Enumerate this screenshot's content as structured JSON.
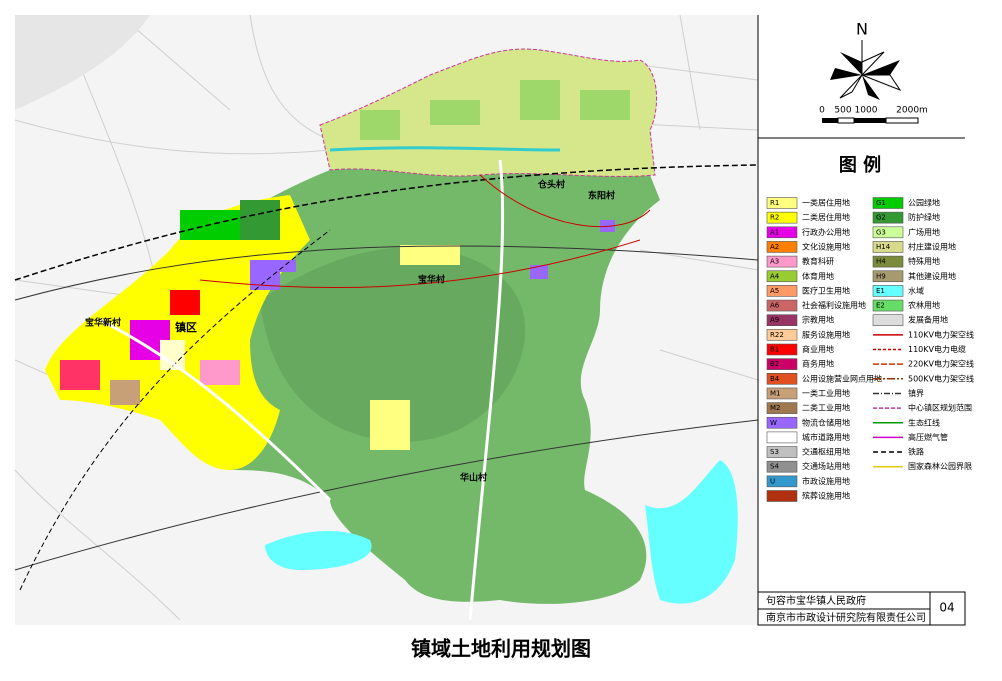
{
  "north": "N",
  "scale": {
    "labels": [
      "0",
      "500",
      "1000",
      "2000m"
    ]
  },
  "legend": {
    "title": "图 例",
    "fills": [
      {
        "code": "R1",
        "label": "一类居住用地",
        "color": "#ffff80"
      },
      {
        "code": "R2",
        "label": "二类居住用地",
        "color": "#ffff00"
      },
      {
        "code": "A1",
        "label": "行政办公用地",
        "color": "#e600e6"
      },
      {
        "code": "A2",
        "label": "文化设施用地",
        "color": "#ff7f00"
      },
      {
        "code": "A3",
        "label": "教育科研",
        "color": "#ff99cc"
      },
      {
        "code": "A4",
        "label": "体育用地",
        "color": "#99cc33"
      },
      {
        "code": "A5",
        "label": "医疗卫生用地",
        "color": "#ff9966"
      },
      {
        "code": "A6",
        "label": "社会福利设施用地",
        "color": "#cc6666"
      },
      {
        "code": "A9",
        "label": "宗教用地",
        "color": "#993366"
      },
      {
        "code": "R22",
        "label": "服务设施用地",
        "color": "#ffcc99"
      },
      {
        "code": "B1",
        "label": "商业用地",
        "color": "#ff0000"
      },
      {
        "code": "B2",
        "label": "商务用地",
        "color": "#cc0066"
      },
      {
        "code": "B4",
        "label": "公用设施营业网点用地",
        "color": "#e05020"
      },
      {
        "code": "M1",
        "label": "一类工业用地",
        "color": "#c8a078"
      },
      {
        "code": "M2",
        "label": "二类工业用地",
        "color": "#a07850"
      },
      {
        "code": "W",
        "label": "物流仓储用地",
        "color": "#9966ff"
      },
      {
        "label": "城市道路用地",
        "color": "#ffffff"
      },
      {
        "code": "S3",
        "label": "交通枢纽用地",
        "color": "#c0c0c0"
      },
      {
        "code": "S4",
        "label": "交通场站用地",
        "color": "#909090"
      },
      {
        "code": "U",
        "label": "市政设施用地",
        "color": "#3399cc"
      },
      {
        "label": "殡葬设施用地",
        "color": "#b03010"
      },
      {
        "code": "G1",
        "label": "公园绿地",
        "color": "#00cc00"
      },
      {
        "code": "G2",
        "label": "防护绿地",
        "color": "#339933"
      },
      {
        "code": "G3",
        "label": "广场用地",
        "color": "#ccff99"
      },
      {
        "code": "H14",
        "label": "村庄建设用地",
        "color": "#d9d98c"
      },
      {
        "code": "H4",
        "label": "特殊用地",
        "color": "#7a8c3c"
      },
      {
        "code": "H9",
        "label": "其他建设用地",
        "color": "#a69a6e"
      },
      {
        "code": "E1",
        "label": "水域",
        "color": "#66ffff"
      },
      {
        "code": "E2",
        "label": "农林用地",
        "color": "#66dd66"
      },
      {
        "label": "发展备用地",
        "color": "#dddddd"
      }
    ],
    "lines": [
      {
        "label": "110KV电力架空线",
        "color": "#cc0000",
        "dash": "none"
      },
      {
        "label": "110KV电力电缆",
        "color": "#cc0000",
        "dash": "3 2"
      },
      {
        "label": "220KV电力架空线",
        "color": "#cc3300",
        "dash": "6 2"
      },
      {
        "label": "500KV电力架空线",
        "color": "#993300",
        "dash": "8 2 2 2"
      },
      {
        "label": "镇界",
        "color": "#333333",
        "dash": "6 2 1 2"
      },
      {
        "label": "中心镇区规划范围",
        "color": "#cc3399",
        "dash": "4 2"
      },
      {
        "label": "生态红线",
        "color": "#009900",
        "dash": "none"
      },
      {
        "label": "高压燃气管",
        "color": "#cc00cc",
        "dash": "none"
      },
      {
        "label": "铁路",
        "color": "#000000",
        "dash": "5 3"
      },
      {
        "label": "国家森林公园界限",
        "color": "#e6c800",
        "dash": "none"
      }
    ]
  },
  "map_labels": [
    "镇区",
    "宝华村",
    "华山村",
    "仓头村",
    "宝华新村",
    "东阳村"
  ],
  "footer": {
    "client": "句容市宝华镇人民政府",
    "designer": "南京市市政设计研究院有限责任公司",
    "sheet": "04"
  },
  "title": "镇域土地利用规划图"
}
